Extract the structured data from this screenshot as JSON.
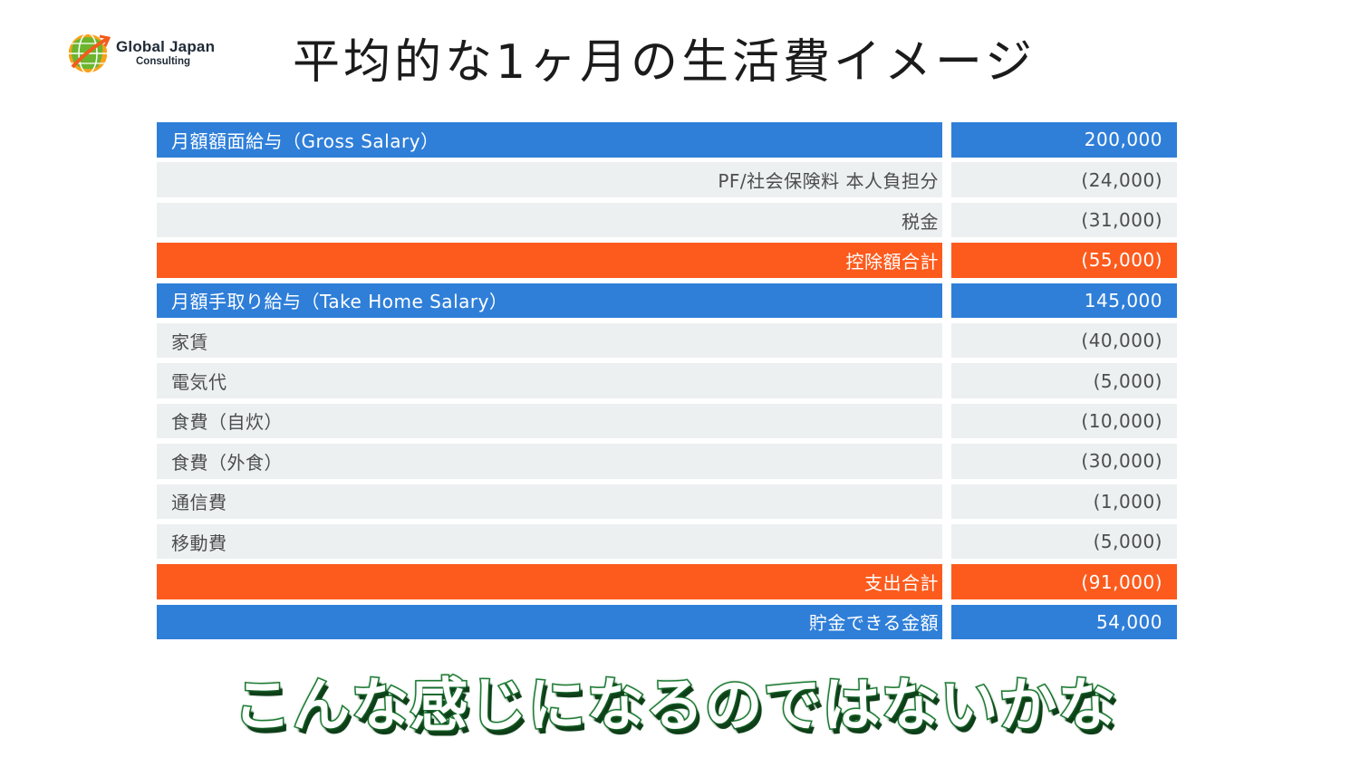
{
  "logo": {
    "name": "Global Japan",
    "subtitle": "Consulting"
  },
  "title": "平均的な1ヶ月の生活費イメージ",
  "colors": {
    "blue": "#2f7fd9",
    "orange": "#fc5b1d",
    "gray": "#ecf0f1",
    "caption_outline": "#1e7b34"
  },
  "table": {
    "rows": [
      {
        "label": "月額額面給与（Gross Salary）",
        "value": "200,000",
        "style": "blue",
        "align": "left"
      },
      {
        "label": "PF/社会保険料 本人負担分",
        "value": "(24,000)",
        "style": "gray",
        "align": "right"
      },
      {
        "label": "税金",
        "value": "(31,000)",
        "style": "gray",
        "align": "right"
      },
      {
        "label": "控除額合計",
        "value": "(55,000)",
        "style": "orange",
        "align": "right"
      },
      {
        "label": "月額手取り給与（Take Home Salary）",
        "value": "145,000",
        "style": "blue",
        "align": "left"
      },
      {
        "label": "家賃",
        "value": "(40,000)",
        "style": "gray",
        "align": "left"
      },
      {
        "label": "電気代",
        "value": "(5,000)",
        "style": "gray",
        "align": "left"
      },
      {
        "label": "食費（自炊）",
        "value": "(10,000)",
        "style": "gray",
        "align": "left"
      },
      {
        "label": "食費（外食）",
        "value": "(30,000)",
        "style": "gray",
        "align": "left"
      },
      {
        "label": "通信費",
        "value": "(1,000)",
        "style": "gray",
        "align": "left"
      },
      {
        "label": "移動費",
        "value": "(5,000)",
        "style": "gray",
        "align": "left"
      },
      {
        "label": "支出合計",
        "value": "(91,000)",
        "style": "orange",
        "align": "right"
      },
      {
        "label": "貯金できる金額",
        "value": "54,000",
        "style": "blue",
        "align": "right"
      }
    ]
  },
  "caption": "こんな感じになるのではないかな"
}
